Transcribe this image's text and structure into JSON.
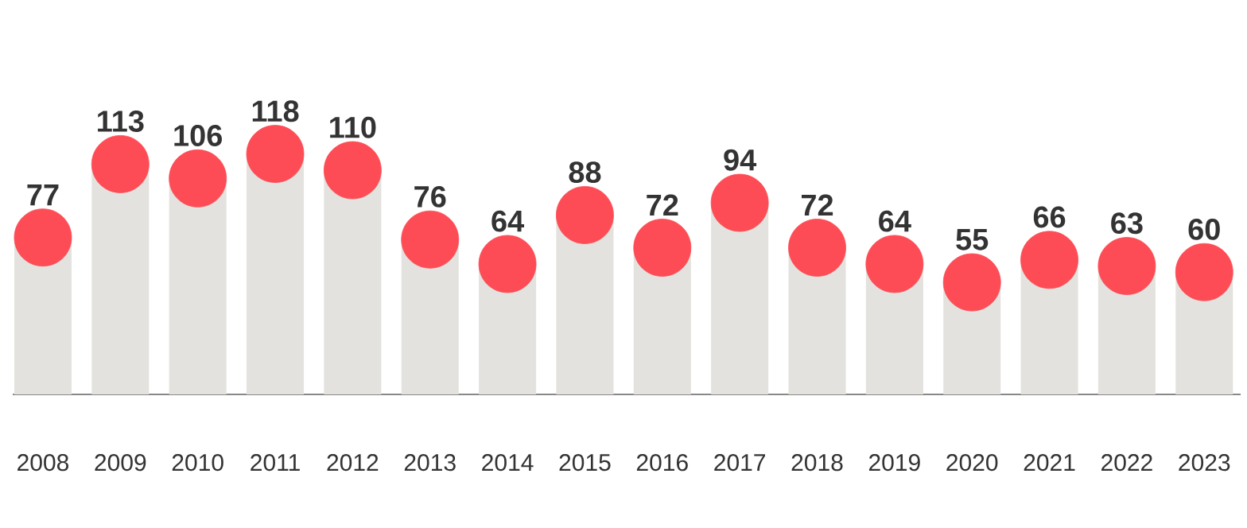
{
  "chart_data": {
    "type": "bar",
    "categories": [
      "2008",
      "2009",
      "2010",
      "2011",
      "2012",
      "2013",
      "2014",
      "2015",
      "2016",
      "2017",
      "2018",
      "2019",
      "2020",
      "2021",
      "2022",
      "2023"
    ],
    "series": [
      {
        "color": "#e3e2de",
        "values": [
          77,
          113,
          106,
          118,
          110,
          76,
          64,
          88,
          72,
          94,
          72,
          64,
          55,
          66,
          63,
          60
        ]
      },
      {
        "type": "scatter",
        "marker": "circle",
        "color": "#fd4c55",
        "values": [
          77,
          113,
          106,
          118,
          110,
          76,
          64,
          88,
          72,
          94,
          72,
          64,
          55,
          66,
          63,
          60
        ],
        "value_labels": [
          "77",
          "113",
          "106",
          "118",
          "110",
          "76",
          "64",
          "88",
          "72",
          "94",
          "72",
          "64",
          "55",
          "66",
          "63",
          "60"
        ]
      }
    ]
  }
}
